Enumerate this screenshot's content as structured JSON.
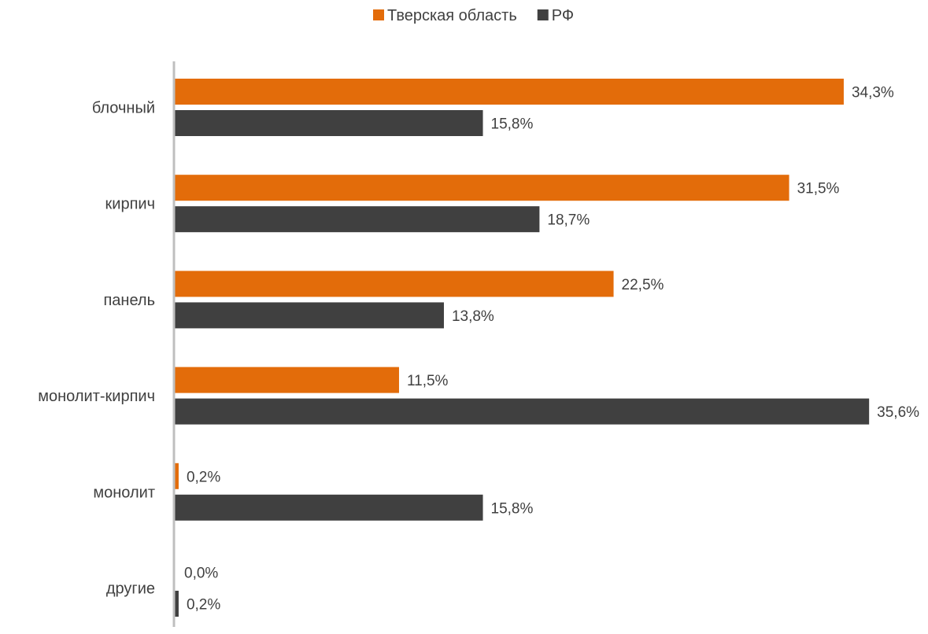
{
  "chart_data": {
    "type": "bar",
    "orientation": "horizontal",
    "categories": [
      "блочный",
      "кирпич",
      "панель",
      "монолит-кирпич",
      "монолит",
      "другие"
    ],
    "series": [
      {
        "name": "Тверская область",
        "color": "#E36C0A",
        "values": [
          34.3,
          31.5,
          22.5,
          11.5,
          0.2,
          0.0
        ],
        "labels": [
          "34,3%",
          "31,5%",
          "22,5%",
          "11,5%",
          "0,2%",
          "0,0%"
        ]
      },
      {
        "name": "РФ",
        "color": "#404040",
        "values": [
          15.8,
          18.7,
          13.8,
          35.6,
          15.8,
          0.2
        ],
        "labels": [
          "15,8%",
          "18,7%",
          "13,8%",
          "35,6%",
          "15,8%",
          "0,2%"
        ]
      }
    ],
    "title": "",
    "xlabel": "",
    "ylabel": "",
    "xlim": [
      0,
      40
    ],
    "grid": false,
    "legend_position": "top-center",
    "axis_color": "#BFBFBF"
  }
}
